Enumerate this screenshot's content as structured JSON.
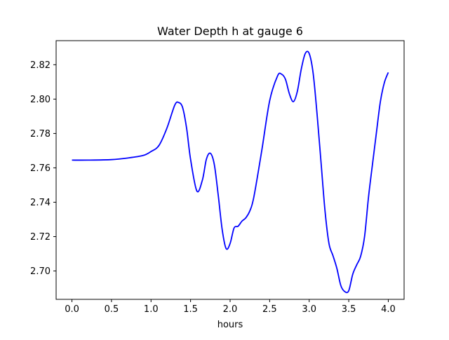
{
  "chart_data": {
    "type": "line",
    "title": "Water Depth h at gauge 6",
    "xlabel": "hours",
    "ylabel": "",
    "xlim": [
      -0.2,
      4.2
    ],
    "ylim": [
      2.6835,
      2.834
    ],
    "xticks": [
      0.0,
      0.5,
      1.0,
      1.5,
      2.0,
      2.5,
      3.0,
      3.5,
      4.0
    ],
    "xtick_labels": [
      "0.0",
      "0.5",
      "1.0",
      "1.5",
      "2.0",
      "2.5",
      "3.0",
      "3.5",
      "4.0"
    ],
    "yticks": [
      2.7,
      2.72,
      2.74,
      2.76,
      2.78,
      2.8,
      2.82
    ],
    "ytick_labels": [
      "2.70",
      "2.72",
      "2.74",
      "2.76",
      "2.78",
      "2.80",
      "2.82"
    ],
    "grid": false,
    "series": [
      {
        "color": "#0000ff",
        "x": [
          0.0,
          0.2,
          0.5,
          0.7,
          0.9,
          1.0,
          1.1,
          1.2,
          1.3,
          1.35,
          1.4,
          1.45,
          1.5,
          1.58,
          1.65,
          1.7,
          1.75,
          1.8,
          1.85,
          1.9,
          1.95,
          2.0,
          2.05,
          2.1,
          2.15,
          2.2,
          2.25,
          2.3,
          2.4,
          2.5,
          2.6,
          2.65,
          2.7,
          2.75,
          2.8,
          2.85,
          2.9,
          2.95,
          3.0,
          3.05,
          3.1,
          3.15,
          3.2,
          3.25,
          3.3,
          3.35,
          3.4,
          3.45,
          3.5,
          3.55,
          3.6,
          3.65,
          3.7,
          3.75,
          3.8,
          3.85,
          3.9,
          3.95,
          4.0
        ],
        "y": [
          2.7645,
          2.7645,
          2.7648,
          2.7657,
          2.7672,
          2.7695,
          2.773,
          2.783,
          2.7965,
          2.798,
          2.795,
          2.783,
          2.765,
          2.7465,
          2.753,
          2.765,
          2.7685,
          2.762,
          2.744,
          2.724,
          2.713,
          2.716,
          2.725,
          2.726,
          2.729,
          2.731,
          2.735,
          2.743,
          2.77,
          2.799,
          2.8135,
          2.8145,
          2.8115,
          2.803,
          2.7985,
          2.8045,
          2.8175,
          2.8265,
          2.8265,
          2.815,
          2.791,
          2.763,
          2.735,
          2.716,
          2.709,
          2.7015,
          2.6915,
          2.688,
          2.6885,
          2.698,
          2.7035,
          2.7085,
          2.72,
          2.743,
          2.762,
          2.7805,
          2.7985,
          2.8095,
          2.8155
        ]
      }
    ]
  }
}
